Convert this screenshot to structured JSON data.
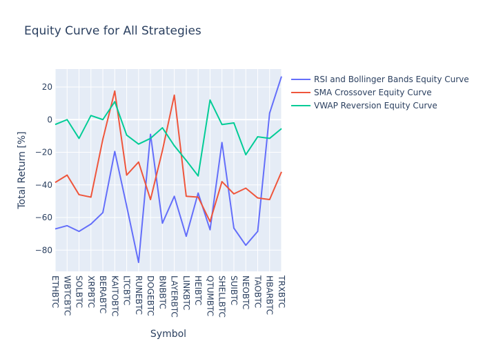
{
  "chart_data": {
    "type": "line",
    "title": "Equity Curve for All Strategies",
    "xlabel": "Symbol",
    "ylabel": "Total Return [%]",
    "ylim": [
      -93,
      31
    ],
    "yticks": [
      -80,
      -60,
      -40,
      -20,
      0,
      20
    ],
    "grid": true,
    "legend_position": "top-right",
    "categories": [
      "ETHBTC",
      "WBTCBTC",
      "SOLBTC",
      "XRPBTC",
      "BERABTC",
      "KAITOBTC",
      "LTCBTC",
      "RUNEBTC",
      "DOGEBTC",
      "BNBBTC",
      "LAYERBTC",
      "LINKBTC",
      "HEIBTC",
      "QTUMBTC",
      "SHELLBTC",
      "SUIBTC",
      "NEOBTC",
      "TAOBTC",
      "HBARBTC",
      "TRXBTC"
    ],
    "series": [
      {
        "name": "RSI and Bollinger Bands Equity Curve",
        "color": "#636efa",
        "values": [
          -67,
          -65,
          -68.5,
          -64,
          -57,
          -19.5,
          -53,
          -87.5,
          -9,
          -63.5,
          -47,
          -71.5,
          -45,
          -67.5,
          -14,
          -66.5,
          -77,
          -68.5,
          4,
          26.5
        ]
      },
      {
        "name": "SMA Crossover Equity Curve",
        "color": "#ef553b",
        "values": [
          -38.5,
          -34,
          -46,
          -47.5,
          -12,
          17.5,
          -34,
          -26,
          -49,
          -19,
          15,
          -47,
          -47.5,
          -62.5,
          -38,
          -45.5,
          -42,
          -48,
          -49,
          -32
        ]
      },
      {
        "name": "VWAP Reversion Equity Curve",
        "color": "#00cc96",
        "values": [
          -3,
          0,
          -11.5,
          2.5,
          0,
          11,
          -9.5,
          -15,
          -11.5,
          -5,
          -16,
          -25,
          -34.5,
          12,
          -3,
          -2,
          -21.5,
          -10.5,
          -11.5,
          -5.5
        ]
      }
    ]
  }
}
